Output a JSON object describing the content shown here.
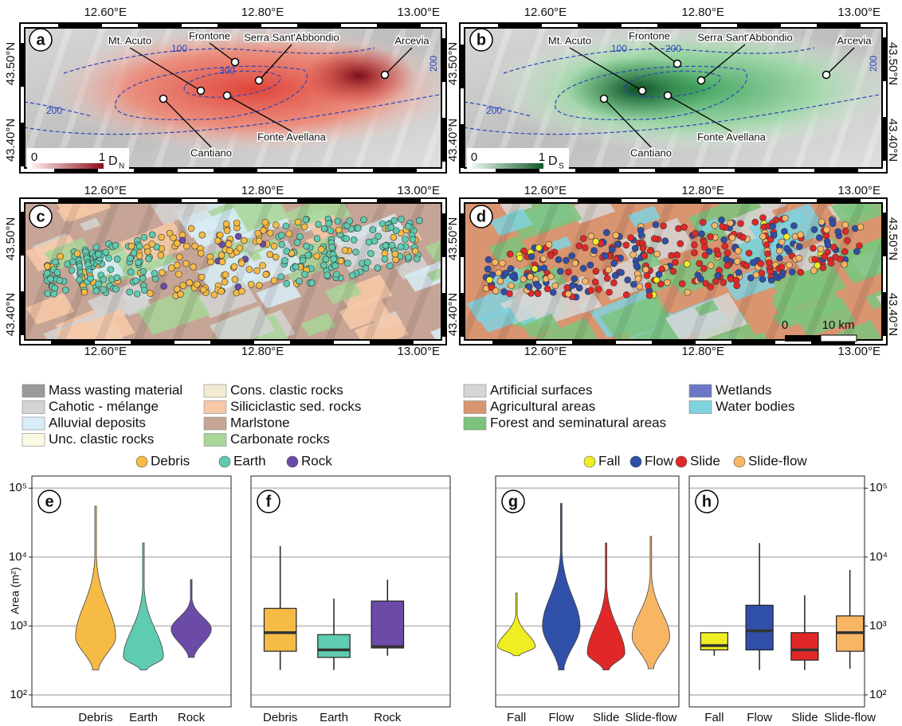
{
  "lon_ticks": [
    "12.60°E",
    "12.80°E",
    "13.00°E"
  ],
  "lat_ticks": [
    "43.50°N",
    "43.40°N"
  ],
  "panel_labels": [
    "a",
    "b",
    "c",
    "d"
  ],
  "place_names": [
    "Mt. Acuto",
    "Frontone",
    "Serra Sant'Abbondio",
    "Arcevia",
    "Cantiano",
    "Fonte Avellana"
  ],
  "density_maps": [
    {
      "contour_labels": [
        "100",
        "300",
        "200",
        "200"
      ],
      "colorbar": {
        "min": "0",
        "max": "1",
        "label": "D",
        "subscript": "N"
      }
    },
    {
      "contour_labels": [
        "100",
        "200",
        "200",
        "200"
      ],
      "colorbar": {
        "min": "0",
        "max": "1",
        "label": "D",
        "subscript": "S"
      }
    }
  ],
  "scale_bar": {
    "start": "0",
    "end": "10 km"
  },
  "lithology_legend": [
    {
      "label": "Mass wasting material",
      "color": "#9a9a9a"
    },
    {
      "label": "Cahotic - mélange",
      "color": "#d4d4d4"
    },
    {
      "label": "Alluvial deposits",
      "color": "#d8edf8"
    },
    {
      "label": "Unc. clastic rocks",
      "color": "#fafae4"
    },
    {
      "label": "Cons. clastic rocks",
      "color": "#f3ead2"
    },
    {
      "label": "Siliciclastic sed. rocks",
      "color": "#f8c9a8"
    },
    {
      "label": "Marlstone",
      "color": "#c6a596"
    },
    {
      "label": "Carbonate rocks",
      "color": "#a8d598"
    }
  ],
  "land_cover_legend": [
    {
      "label": "Artificial surfaces",
      "color": "#d6d6d6"
    },
    {
      "label": "Agricultural areas",
      "color": "#d99470"
    },
    {
      "label": "Forest and seminatural areas",
      "color": "#7cc47e"
    },
    {
      "label": "Wetlands",
      "color": "#6a78c4"
    },
    {
      "label": "Water bodies",
      "color": "#7fd2de"
    }
  ],
  "chart_data": [
    {
      "type": "violin",
      "panel": "e",
      "categories": [
        "Debris",
        "Earth",
        "Rock"
      ],
      "colors": [
        "#f6bb45",
        "#5fcbb0",
        "#6c4aa8"
      ],
      "min": [
        230,
        230,
        350
      ],
      "peak": [
        700,
        350,
        900
      ],
      "max": [
        55000,
        16000,
        4700
      ],
      "y_label": "Area (m²)",
      "ylog": true,
      "ylim": [
        67,
        150000
      ],
      "yticks": [
        {
          "value": 100,
          "label": "10²"
        },
        {
          "value": 1000,
          "label": "10³"
        },
        {
          "value": 10000,
          "label": "10⁴"
        },
        {
          "value": 100000,
          "label": "10⁵"
        }
      ],
      "grid": true
    },
    {
      "type": "box",
      "panel": "f",
      "categories": [
        "Debris",
        "Earth",
        "Rock"
      ],
      "colors": [
        "#f6bb45",
        "#5fcbb0",
        "#6c4aa8"
      ],
      "whisker_low": [
        230,
        230,
        370
      ],
      "q1": [
        430,
        350,
        480
      ],
      "median": [
        800,
        450,
        500
      ],
      "q3": [
        1800,
        750,
        2300
      ],
      "whisker_high": [
        14500,
        2500,
        4700
      ]
    },
    {
      "type": "violin",
      "panel": "g",
      "categories": [
        "Fall",
        "Flow",
        "Slide",
        "Slide-flow"
      ],
      "colors": [
        "#eeee22",
        "#2f4fa8",
        "#e02828",
        "#f8b664"
      ],
      "min": [
        370,
        230,
        230,
        240
      ],
      "peak": [
        500,
        1000,
        400,
        700
      ],
      "max": [
        3000,
        60000,
        16000,
        20000
      ],
      "y_label": "Area (m²)",
      "ylog": true,
      "ylim": [
        67,
        150000
      ],
      "yticks": [
        {
          "value": 100,
          "label": "10²"
        },
        {
          "value": 1000,
          "label": "10³"
        },
        {
          "value": 10000,
          "label": "10⁴"
        },
        {
          "value": 100000,
          "label": "10⁵"
        }
      ],
      "grid": true
    },
    {
      "type": "box",
      "panel": "h",
      "categories": [
        "Fall",
        "Flow",
        "Slide",
        "Slide-flow"
      ],
      "colors": [
        "#eeee22",
        "#2f4fa8",
        "#e02828",
        "#f8b664"
      ],
      "whisker_low": [
        370,
        230,
        230,
        240
      ],
      "q1": [
        450,
        450,
        320,
        430
      ],
      "median": [
        520,
        850,
        450,
        800
      ],
      "q3": [
        800,
        2000,
        800,
        1400
      ],
      "whisker_high": [
        800,
        16000,
        2800,
        6500
      ]
    }
  ]
}
